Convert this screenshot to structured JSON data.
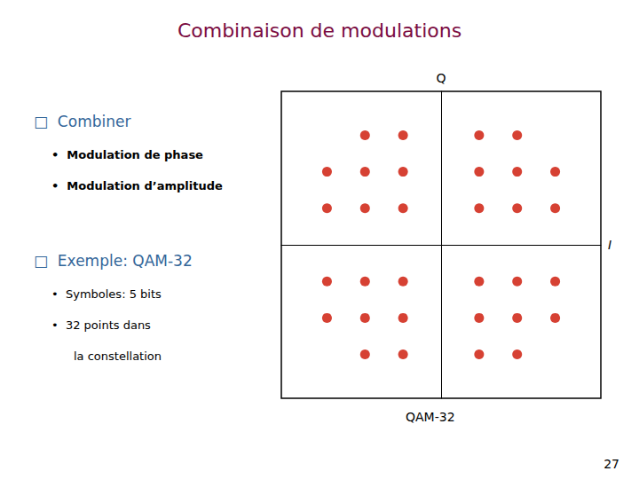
{
  "chart_data": {
    "type": "scatter",
    "title": "Combinaison de modulations",
    "xlabel": "I",
    "ylabel": "Q",
    "annotations": [
      [
        "□  Combiner",
        "•  Modulation de phase",
        "•  Modulation d’amplitude"
      ],
      [
        "□  Exemple: QAM-32",
        "•  Symboles: 5 bits",
        "•  32 points dans",
        "la constellation"
      ],
      "QAM-32",
      "27"
    ],
    "x": [
      -2,
      -1,
      1,
      2,
      -3,
      -2,
      -1,
      1,
      2,
      3,
      -3,
      -2,
      -1,
      1,
      2,
      3,
      -3,
      -2,
      -1,
      1,
      2,
      3,
      -3,
      -2,
      -1,
      1,
      2,
      3,
      -2,
      -1,
      1,
      2
    ],
    "values": [
      3,
      3,
      3,
      3,
      2,
      2,
      2,
      2,
      2,
      2,
      1,
      1,
      1,
      1,
      1,
      1,
      -1,
      -1,
      -1,
      -1,
      -1,
      -1,
      -2,
      -2,
      -2,
      -2,
      -2,
      -2,
      -3,
      -3,
      -3,
      -3
    ],
    "color": "#CC1100",
    "xlim": [
      -4.2,
      4.2
    ],
    "ylim": [
      -4.2,
      4.2
    ],
    "tick_labels": false,
    "grid": false
  }
}
